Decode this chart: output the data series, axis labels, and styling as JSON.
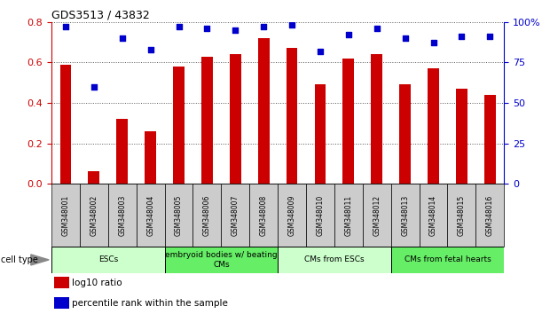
{
  "title": "GDS3513 / 43832",
  "samples": [
    "GSM348001",
    "GSM348002",
    "GSM348003",
    "GSM348004",
    "GSM348005",
    "GSM348006",
    "GSM348007",
    "GSM348008",
    "GSM348009",
    "GSM348010",
    "GSM348011",
    "GSM348012",
    "GSM348013",
    "GSM348014",
    "GSM348015",
    "GSM348016"
  ],
  "log10_ratio": [
    0.59,
    0.06,
    0.32,
    0.26,
    0.58,
    0.63,
    0.64,
    0.72,
    0.67,
    0.49,
    0.62,
    0.64,
    0.49,
    0.57,
    0.47,
    0.44
  ],
  "percentile_rank": [
    97,
    60,
    90,
    83,
    97,
    96,
    95,
    97,
    98,
    82,
    92,
    96,
    90,
    87,
    91,
    91
  ],
  "bar_color": "#cc0000",
  "dot_color": "#0000cc",
  "ylim_left": [
    0,
    0.8
  ],
  "ylim_right": [
    0,
    100
  ],
  "yticks_left": [
    0,
    0.2,
    0.4,
    0.6,
    0.8
  ],
  "yticks_right": [
    0,
    25,
    50,
    75,
    100
  ],
  "cell_groups": [
    {
      "label": "ESCs",
      "start": 0,
      "end": 4,
      "color": "#ccffcc"
    },
    {
      "label": "embryoid bodies w/ beating\nCMs",
      "start": 4,
      "end": 8,
      "color": "#66ee66"
    },
    {
      "label": "CMs from ESCs",
      "start": 8,
      "end": 12,
      "color": "#ccffcc"
    },
    {
      "label": "CMs from fetal hearts",
      "start": 12,
      "end": 16,
      "color": "#66ee66"
    }
  ],
  "legend_bar_label": "log10 ratio",
  "legend_dot_label": "percentile rank within the sample",
  "cell_type_label": "cell type",
  "grid_color": "#555555",
  "axis_color_left": "#cc0000",
  "axis_color_right": "#0000cc",
  "background_color": "#ffffff",
  "tick_area_color": "#cccccc",
  "fig_width": 6.11,
  "fig_height": 3.54,
  "dpi": 100
}
